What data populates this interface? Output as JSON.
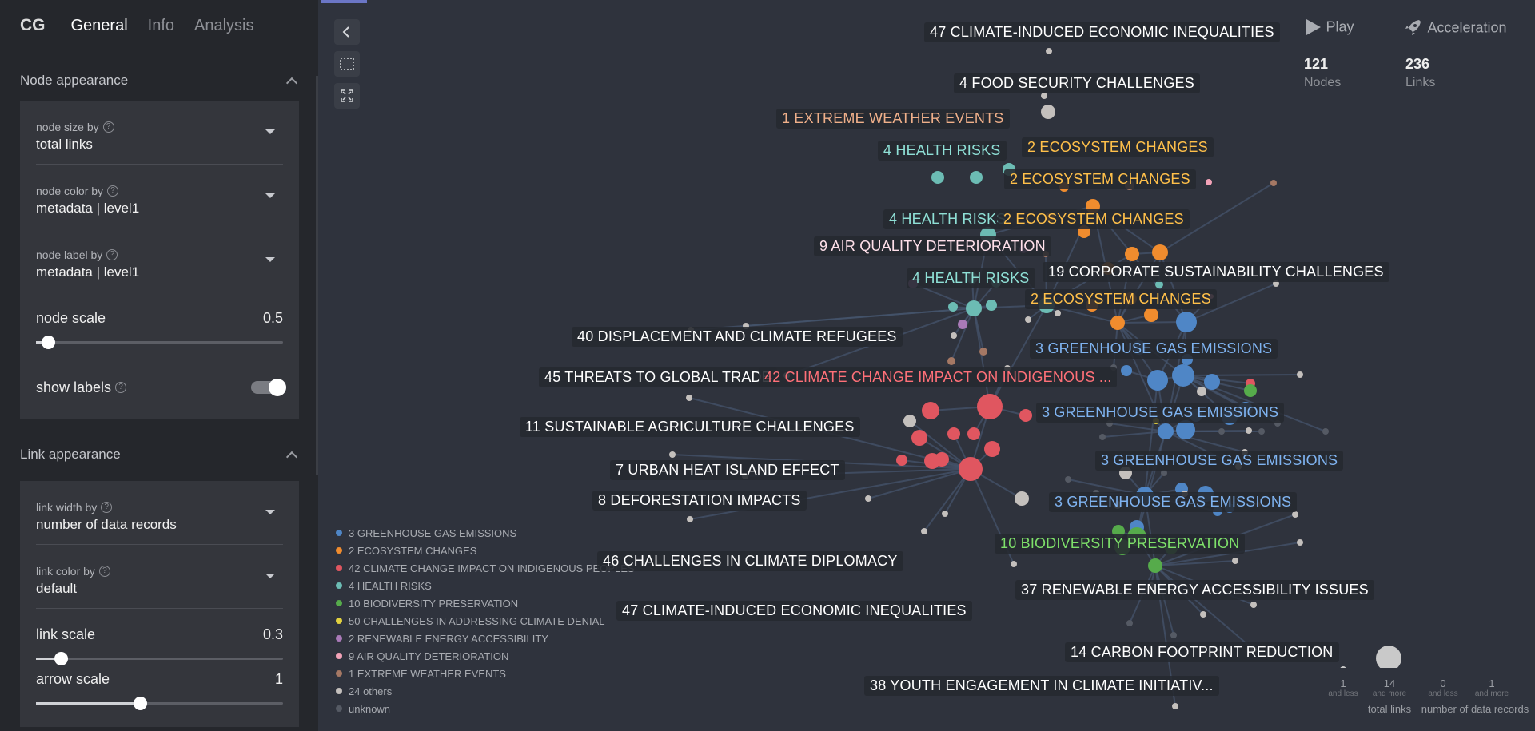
{
  "header": {
    "brand": "CG",
    "tabs": [
      "General",
      "Info",
      "Analysis"
    ]
  },
  "node_section": {
    "title": "Node appearance",
    "size_by": {
      "label": "node size by",
      "value": "total links"
    },
    "color_by": {
      "label": "node color by",
      "value": "metadata | level1"
    },
    "label_by": {
      "label": "node label by",
      "value": "metadata | level1"
    },
    "scale": {
      "label": "node scale",
      "value": "0.5",
      "fraction": 0.05
    },
    "show_labels": {
      "label": "show labels",
      "on": true
    }
  },
  "link_section": {
    "title": "Link appearance",
    "width_by": {
      "label": "link width by",
      "value": "number of data records"
    },
    "color_by": {
      "label": "link color by",
      "value": "default"
    },
    "scale": {
      "label": "link scale",
      "value": "0.3",
      "fraction": 0.1
    },
    "arrow": {
      "label": "arrow scale",
      "value": "1",
      "fraction": 0.42
    }
  },
  "controls": {
    "play": "Play",
    "acceleration": "Acceleration"
  },
  "stats": {
    "nodes_value": "121",
    "nodes_label": "Nodes",
    "links_value": "236",
    "links_label": "Links"
  },
  "legend": [
    {
      "label": "3 GREENHOUSE GAS EMISSIONS",
      "color": "#4f86c6"
    },
    {
      "label": "2 ECOSYSTEM CHANGES",
      "color": "#f08c2e"
    },
    {
      "label": "42 CLIMATE CHANGE IMPACT ON INDIGENOUS PEOPLES",
      "color": "#e05660"
    },
    {
      "label": "4 HEALTH RISKS",
      "color": "#6cbcb4"
    },
    {
      "label": "10 BIODIVERSITY PRESERVATION",
      "color": "#56ab4b"
    },
    {
      "label": "50 CHALLENGES IN ADDRESSING CLIMATE DENIAL",
      "color": "#e2d13f"
    },
    {
      "label": "2 RENEWABLE ENERGY ACCESSIBILITY",
      "color": "#a97ab8"
    },
    {
      "label": "9 AIR QUALITY DETERIORATION",
      "color": "#f3a3b8"
    },
    {
      "label": "1 EXTREME WEATHER EVENTS",
      "color": "#a57864"
    },
    {
      "label": "24 others",
      "color": "#c4c0bd"
    },
    {
      "label": "unknown",
      "color": "#555a64"
    }
  ],
  "node_labels": [
    {
      "text": "47 CLIMATE-INDUCED ECONOMIC INEQUALITIES",
      "color": "#ffffff"
    },
    {
      "text": "4 FOOD SECURITY CHALLENGES",
      "color": "#ffffff"
    },
    {
      "text": "1 EXTREME WEATHER EVENTS",
      "color": "#f0b08a"
    },
    {
      "text": "4 HEALTH RISKS",
      "color": "#8fe0d6"
    },
    {
      "text": "2 ECOSYSTEM CHANGES",
      "color": "#ffc04a"
    },
    {
      "text": "2 ECOSYSTEM CHANGES",
      "color": "#ffc04a"
    },
    {
      "text": "4 HEALTH RISKS",
      "color": "#8fe0d6"
    },
    {
      "text": "2 ECOSYSTEM CHANGES",
      "color": "#ffc04a"
    },
    {
      "text": "9 AIR QUALITY DETERIORATION",
      "color": "#ffe0ea"
    },
    {
      "text": "4 HEALTH RISKS",
      "color": "#8fe0d6"
    },
    {
      "text": "19 CORPORATE SUSTAINABILITY CHALLENGES",
      "color": "#ffffff"
    },
    {
      "text": "2 ECOSYSTEM CHANGES",
      "color": "#ffc04a"
    },
    {
      "text": "40 DISPLACEMENT AND CLIMATE REFUGEES",
      "color": "#ffffff"
    },
    {
      "text": "3 GREENHOUSE GAS EMISSIONS",
      "color": "#7fb3f0"
    },
    {
      "text": "45 THREATS TO GLOBAL TRADE",
      "color": "#ffffff"
    },
    {
      "text": "42 CLIMATE CHANGE IMPACT ON INDIGENOUS ...",
      "color": "#ff7078"
    },
    {
      "text": "3 GREENHOUSE GAS EMISSIONS",
      "color": "#7fb3f0"
    },
    {
      "text": "11 SUSTAINABLE AGRICULTURE CHALLENGES",
      "color": "#ffffff"
    },
    {
      "text": "3 GREENHOUSE GAS EMISSIONS",
      "color": "#7fb3f0"
    },
    {
      "text": "7 URBAN HEAT ISLAND EFFECT",
      "color": "#ffffff"
    },
    {
      "text": "8 DEFORESTATION IMPACTS",
      "color": "#ffffff"
    },
    {
      "text": "3 GREENHOUSE GAS EMISSIONS",
      "color": "#7fb3f0"
    },
    {
      "text": "10 BIODIVERSITY PRESERVATION",
      "color": "#7ee06a"
    },
    {
      "text": "46 CHALLENGES IN CLIMATE DIPLOMACY",
      "color": "#ffffff"
    },
    {
      "text": "37 RENEWABLE ENERGY ACCESSIBILITY ISSUES",
      "color": "#ffffff"
    },
    {
      "text": "47 CLIMATE-INDUCED ECONOMIC INEQUALITIES",
      "color": "#ffffff"
    },
    {
      "text": "14 CARBON FOOTPRINT REDUCTION",
      "color": "#ffffff"
    },
    {
      "text": "38 YOUTH ENGAGEMENT IN CLIMATE INITIATIV...",
      "color": "#ffffff"
    }
  ],
  "size_legend": {
    "min_value": "1",
    "min_note": "and less",
    "max_value": "14",
    "max_note": "and more",
    "title": "total links",
    "link_min_value": "0",
    "link_min_note": "and less",
    "link_max_value": "1",
    "link_max_note": "and more",
    "link_title": "number of data records"
  }
}
